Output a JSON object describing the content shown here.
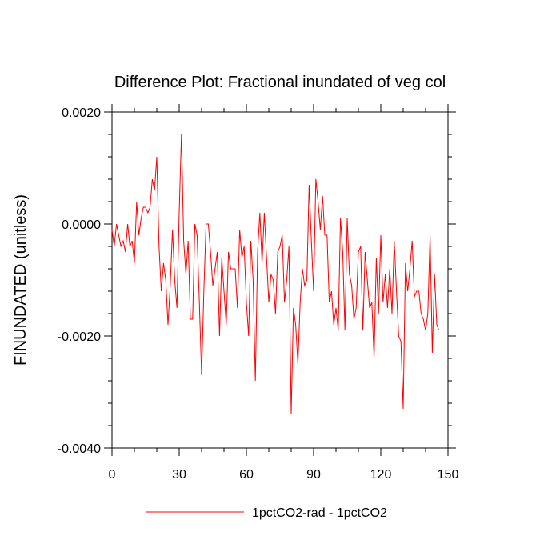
{
  "chart_data": {
    "type": "line",
    "title": "Difference Plot: Fractional inundated of veg col",
    "xlabel": "",
    "ylabel": "FINUNDATED  (unitless)",
    "xlim": [
      0,
      150
    ],
    "ylim": [
      -0.004,
      0.002
    ],
    "x_ticks": [
      0,
      30,
      60,
      90,
      120,
      150
    ],
    "x_tick_labels": [
      "0",
      "30",
      "60",
      "90",
      "120",
      "150"
    ],
    "y_ticks": [
      0.002,
      0.0,
      -0.002,
      -0.004
    ],
    "y_tick_labels": [
      "0.0020",
      "0.0000",
      "-0.0020",
      "-0.0040"
    ],
    "grid": false,
    "legend_position": "bottom",
    "series": [
      {
        "name": "1pctCO2-rad - 1pctCO2",
        "color": "#ff0000",
        "x_start": 0,
        "x_step": 1,
        "values": [
          -0.0001,
          -0.0004,
          0.0,
          -0.0002,
          -0.0004,
          -0.0003,
          -0.0005,
          0.0,
          -0.0004,
          -0.0003,
          -0.0007,
          0.0004,
          -0.0002,
          0.0001,
          0.0003,
          0.0003,
          0.0002,
          0.0003,
          0.0008,
          0.0006,
          0.0012,
          -0.0004,
          -0.0012,
          -0.0007,
          -0.001,
          -0.0018,
          -0.0011,
          -0.0001,
          -0.001,
          -0.0015,
          0.0002,
          0.0016,
          -0.0003,
          -0.0009,
          -0.0003,
          -0.0017,
          -0.0017,
          0.0,
          -0.0002,
          -0.0014,
          -0.0027,
          -0.0012,
          0.0,
          0.0,
          -0.0005,
          -0.0011,
          -0.0008,
          -0.0005,
          -0.002,
          -0.0006,
          -0.0012,
          -0.0018,
          -0.0005,
          -0.0008,
          -0.0008,
          -0.0008,
          -0.0015,
          -0.0001,
          -0.0006,
          -0.0004,
          -0.0014,
          -0.002,
          -0.0003,
          -0.001,
          -0.0028,
          -0.0005,
          0.0002,
          -0.0007,
          0.0002,
          -0.0006,
          -0.0014,
          -0.0009,
          -0.001,
          -0.0016,
          -0.0005,
          -0.0004,
          -0.0002,
          -0.0014,
          -0.001,
          -0.0004,
          -0.0034,
          -0.0015,
          -0.0018,
          -0.0025,
          -0.0014,
          -0.0008,
          -0.0011,
          -0.001,
          0.0007,
          -0.0003,
          -0.0012,
          0.0008,
          0.0004,
          -0.0001,
          0.0005,
          -0.0002,
          -0.0002,
          -0.0014,
          -0.0012,
          -0.0018,
          -0.0015,
          -0.0019,
          0.0001,
          -0.0005,
          -0.0019,
          0.0001,
          -0.0009,
          -0.0011,
          -0.0017,
          -0.0015,
          -0.0005,
          -0.0004,
          -0.0019,
          -0.0005,
          -0.001,
          -0.0015,
          -0.0014,
          -0.0024,
          -0.0006,
          -0.0016,
          -0.0002,
          -0.0014,
          -0.0009,
          -0.0015,
          -0.0008,
          -0.0016,
          -0.0003,
          -0.0012,
          -0.002,
          -0.0021,
          -0.0033,
          -0.0007,
          -0.0012,
          -0.0008,
          -0.0003,
          -0.0013,
          -0.0012,
          -0.0012,
          -0.0016,
          -0.0017,
          -0.0019,
          -0.0016,
          -0.0002,
          -0.0023,
          -0.0009,
          -0.0018,
          -0.0019
        ]
      }
    ]
  }
}
